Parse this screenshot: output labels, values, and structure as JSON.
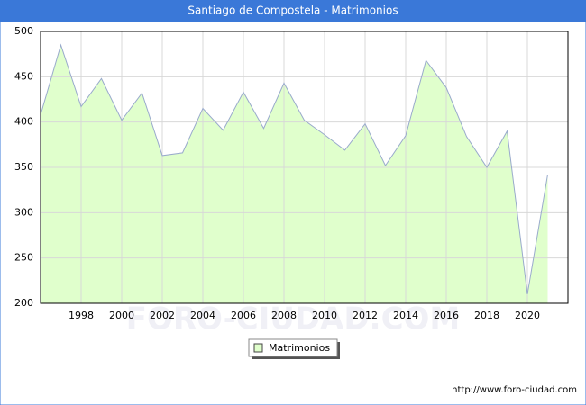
{
  "chart_data": {
    "type": "area",
    "title": "Santiago de Compostela - Matrimonios",
    "x": [
      1996,
      1997,
      1998,
      1999,
      2000,
      2001,
      2002,
      2003,
      2004,
      2005,
      2006,
      2007,
      2008,
      2009,
      2010,
      2011,
      2012,
      2013,
      2014,
      2015,
      2016,
      2017,
      2018,
      2019,
      2020,
      2021
    ],
    "series": [
      {
        "name": "Matrimonios",
        "color": "#e0ffcc",
        "line_color": "#99aacc",
        "values": [
          408,
          485,
          417,
          448,
          402,
          432,
          363,
          366,
          415,
          391,
          433,
          393,
          443,
          402,
          386,
          369,
          398,
          352,
          385,
          468,
          438,
          384,
          350,
          390,
          210,
          342
        ]
      }
    ],
    "xlim": [
      1996,
      2022
    ],
    "xticks": [
      1998,
      2000,
      2002,
      2004,
      2006,
      2008,
      2010,
      2012,
      2014,
      2016,
      2018,
      2020
    ],
    "ylim": [
      200,
      500
    ],
    "yticks": [
      200,
      250,
      300,
      350,
      400,
      450,
      500
    ],
    "grid": true,
    "legend": "bottom",
    "watermark": "FORO-CIUDAD.COM",
    "source": "http://www.foro-ciudad.com"
  }
}
